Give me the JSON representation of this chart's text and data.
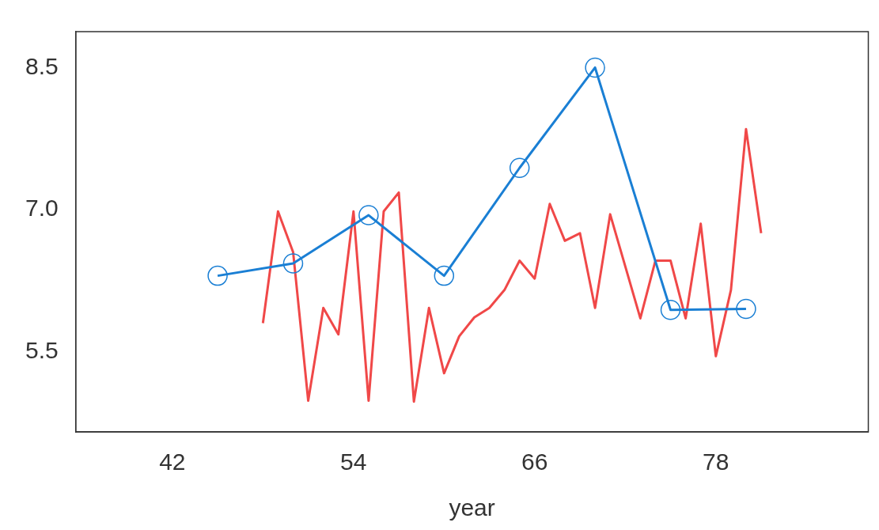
{
  "chart_data": {
    "type": "line",
    "xlabel": "year",
    "xlim": [
      35.6,
      88.1
    ],
    "xticks": [
      42,
      54,
      66,
      78
    ],
    "ylim": [
      4.65,
      8.88
    ],
    "yticks": [
      5.5,
      {
        "value": 7,
        "label": "7.0"
      },
      8.5
    ],
    "grid": false,
    "legend": false,
    "series": [
      {
        "color": "#1a7fd4",
        "marker": "circle",
        "x": [
          45,
          50,
          55,
          60,
          65,
          70,
          75,
          80
        ],
        "values": [
          6.3,
          6.43,
          6.94,
          6.3,
          7.44,
          8.5,
          5.94,
          5.95
        ]
      },
      {
        "color": "#f04848",
        "marker": "none",
        "x": [
          48,
          49,
          50,
          51,
          52,
          53,
          54,
          55,
          56,
          57,
          58,
          59,
          60,
          61,
          62,
          63,
          64,
          65,
          66,
          67,
          68,
          69,
          70,
          71,
          72,
          73,
          74,
          75,
          76,
          77,
          78,
          79,
          80,
          81
        ],
        "values": [
          5.8,
          6.98,
          6.55,
          4.98,
          5.96,
          5.68,
          6.98,
          4.98,
          6.98,
          7.18,
          4.97,
          5.96,
          5.27,
          5.66,
          5.86,
          5.96,
          6.15,
          6.46,
          6.27,
          7.06,
          6.67,
          6.75,
          5.96,
          6.95,
          6.4,
          5.85,
          6.46,
          6.46,
          5.85,
          6.85,
          5.45,
          6.15,
          7.85,
          6.75
        ]
      }
    ]
  }
}
